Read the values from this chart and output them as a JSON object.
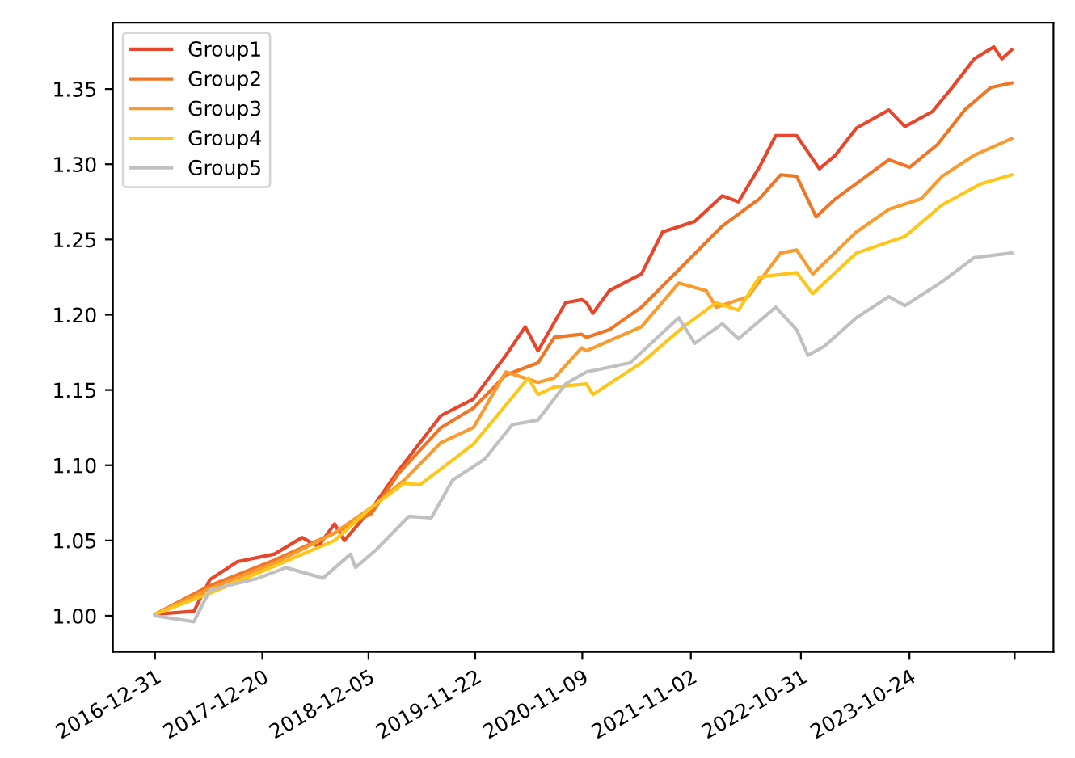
{
  "chart_data": {
    "type": "line",
    "legend": "top left",
    "grid": false,
    "line_style": "solid",
    "marker": "none",
    "xlim": [
      "2016-08-14",
      "2025-02-10"
    ],
    "ylim": [
      0.976,
      1.394
    ],
    "xticks": [
      "2016-12-31",
      "2017-12-20",
      "2018-12-05",
      "2019-11-22",
      "2020-11-09",
      "2021-11-02",
      "2022-10-31",
      "2023-10-24",
      {
        "value": "2024-10-05",
        "label": null
      }
    ],
    "yticks": [
      {
        "value": 1.0,
        "label": "1.00"
      },
      {
        "value": 1.05,
        "label": "1.05"
      },
      {
        "value": 1.1,
        "label": "1.10"
      },
      {
        "value": 1.15,
        "label": "1.15"
      },
      {
        "value": 1.2,
        "label": "1.20"
      },
      {
        "value": 1.25,
        "label": "1.25"
      },
      {
        "value": 1.3,
        "label": "1.30"
      },
      {
        "value": 1.35,
        "label": "1.35"
      }
    ],
    "series": [
      {
        "name": "Group1",
        "color": "#e8462a",
        "x": [
          "2016-12-31",
          "2017-05-08",
          "2017-06-30",
          "2017-09-29",
          "2018-01-29",
          "2018-04-30",
          "2018-06-22",
          "2018-08-15",
          "2018-09-16",
          "2018-12-15",
          "2019-03-16",
          "2019-08-01",
          "2019-11-16",
          "2020-03-02",
          "2020-05-05",
          "2020-06-16",
          "2020-09-15",
          "2020-11-07",
          "2020-11-23",
          "2020-12-14",
          "2021-02-06",
          "2021-05-23",
          "2021-08-01",
          "2021-11-15",
          "2022-02-14",
          "2022-04-08",
          "2022-06-16",
          "2022-08-09",
          "2022-10-17",
          "2022-12-31",
          "2023-02-22",
          "2023-05-02",
          "2023-08-17",
          "2023-10-09",
          "2024-01-08",
          "2024-03-17",
          "2024-05-25",
          "2024-07-28",
          "2024-08-24",
          "2024-09-25"
        ],
        "values": [
          1.001,
          1.003,
          1.024,
          1.036,
          1.041,
          1.052,
          1.046,
          1.061,
          1.05,
          1.071,
          1.097,
          1.133,
          1.144,
          1.173,
          1.192,
          1.176,
          1.208,
          1.21,
          1.208,
          1.201,
          1.216,
          1.227,
          1.255,
          1.262,
          1.279,
          1.275,
          1.298,
          1.319,
          1.319,
          1.297,
          1.306,
          1.324,
          1.336,
          1.325,
          1.335,
          1.352,
          1.37,
          1.378,
          1.37,
          1.376
        ]
      },
      {
        "name": "Group2",
        "color": "#f07525",
        "x": [
          "2016-12-31",
          "2017-06-30",
          "2018-01-29",
          "2018-08-15",
          "2018-12-15",
          "2019-03-16",
          "2019-08-01",
          "2019-11-16",
          "2020-03-02",
          "2020-06-16",
          "2020-08-09",
          "2020-11-07",
          "2020-11-23",
          "2021-02-06",
          "2021-05-23",
          "2021-10-09",
          "2022-02-14",
          "2022-06-16",
          "2022-08-25",
          "2022-10-17",
          "2022-12-20",
          "2023-02-22",
          "2023-08-17",
          "2023-10-25",
          "2024-01-24",
          "2024-04-23",
          "2024-07-18",
          "2024-09-25"
        ],
        "values": [
          1.001,
          1.02,
          1.037,
          1.055,
          1.068,
          1.095,
          1.125,
          1.138,
          1.16,
          1.168,
          1.185,
          1.187,
          1.185,
          1.19,
          1.205,
          1.233,
          1.259,
          1.277,
          1.293,
          1.292,
          1.265,
          1.277,
          1.303,
          1.298,
          1.313,
          1.336,
          1.351,
          1.354
        ]
      },
      {
        "name": "Group3",
        "color": "#f99b2e",
        "x": [
          "2016-12-31",
          "2017-06-30",
          "2018-01-29",
          "2018-08-15",
          "2018-12-15",
          "2019-04-01",
          "2019-08-01",
          "2019-11-16",
          "2020-03-02",
          "2020-06-16",
          "2020-08-09",
          "2020-11-07",
          "2020-11-23",
          "2021-05-23",
          "2021-09-23",
          "2021-12-23",
          "2022-01-24",
          "2022-05-10",
          "2022-08-25",
          "2022-10-17",
          "2022-12-09",
          "2023-05-02",
          "2023-08-17",
          "2023-12-01",
          "2024-02-09",
          "2024-05-25",
          "2024-09-25"
        ],
        "values": [
          1.001,
          1.018,
          1.035,
          1.055,
          1.072,
          1.09,
          1.115,
          1.125,
          1.162,
          1.155,
          1.158,
          1.178,
          1.176,
          1.192,
          1.221,
          1.216,
          1.205,
          1.212,
          1.241,
          1.243,
          1.227,
          1.255,
          1.27,
          1.277,
          1.292,
          1.306,
          1.317
        ]
      },
      {
        "name": "Group4",
        "color": "#ffc61a",
        "x": [
          "2016-12-31",
          "2017-06-30",
          "2018-01-29",
          "2018-08-15",
          "2018-12-15",
          "2019-04-01",
          "2019-05-24",
          "2019-11-16",
          "2020-03-02",
          "2020-05-15",
          "2020-06-16",
          "2020-08-09",
          "2020-11-23",
          "2020-12-14",
          "2021-05-23",
          "2021-10-09",
          "2022-01-24",
          "2022-04-08",
          "2022-06-16",
          "2022-10-17",
          "2022-12-09",
          "2023-05-02",
          "2023-10-09",
          "2024-02-09",
          "2024-06-16",
          "2024-09-25"
        ],
        "values": [
          1.001,
          1.015,
          1.033,
          1.05,
          1.072,
          1.088,
          1.087,
          1.114,
          1.14,
          1.158,
          1.147,
          1.152,
          1.154,
          1.147,
          1.168,
          1.192,
          1.208,
          1.203,
          1.225,
          1.228,
          1.214,
          1.241,
          1.252,
          1.273,
          1.287,
          1.293
        ]
      },
      {
        "name": "Group5",
        "color": "#c0c0c0",
        "x": [
          "2016-12-31",
          "2017-05-08",
          "2017-06-30",
          "2017-12-07",
          "2018-03-08",
          "2018-07-08",
          "2018-10-07",
          "2018-10-23",
          "2018-12-31",
          "2019-04-17",
          "2019-06-30",
          "2019-09-08",
          "2019-12-23",
          "2020-03-23",
          "2020-06-16",
          "2020-09-15",
          "2020-11-23",
          "2021-04-16",
          "2021-09-23",
          "2021-11-15",
          "2022-02-14",
          "2022-04-08",
          "2022-08-09",
          "2022-10-17",
          "2022-11-23",
          "2023-01-16",
          "2023-05-02",
          "2023-08-17",
          "2023-10-09",
          "2024-02-09",
          "2024-05-25",
          "2024-09-25"
        ],
        "values": [
          1.0,
          0.996,
          1.017,
          1.025,
          1.032,
          1.025,
          1.041,
          1.032,
          1.044,
          1.066,
          1.065,
          1.09,
          1.104,
          1.127,
          1.13,
          1.154,
          1.162,
          1.168,
          1.198,
          1.181,
          1.194,
          1.184,
          1.205,
          1.19,
          1.173,
          1.179,
          1.198,
          1.212,
          1.206,
          1.222,
          1.238,
          1.241
        ]
      }
    ]
  }
}
